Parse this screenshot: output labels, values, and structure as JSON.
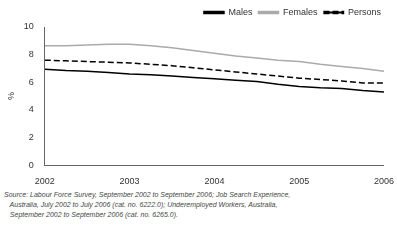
{
  "chart_data": {
    "type": "line",
    "ylabel": "%",
    "x": [
      2002.0,
      2002.25,
      2002.5,
      2002.75,
      2003.0,
      2003.25,
      2003.5,
      2003.75,
      2004.0,
      2004.25,
      2004.5,
      2004.75,
      2005.0,
      2005.25,
      2005.5,
      2005.75,
      2006.0
    ],
    "series": [
      {
        "name": "Males",
        "color": "#000000",
        "line_style": "solid",
        "values": [
          6.95,
          6.85,
          6.8,
          6.7,
          6.6,
          6.55,
          6.45,
          6.35,
          6.25,
          6.15,
          6.05,
          5.85,
          5.7,
          5.6,
          5.55,
          5.4,
          5.3
        ]
      },
      {
        "name": "Females",
        "color": "#aaaaaa",
        "line_style": "solid",
        "values": [
          8.65,
          8.65,
          8.7,
          8.75,
          8.75,
          8.65,
          8.5,
          8.3,
          8.1,
          7.9,
          7.75,
          7.6,
          7.5,
          7.3,
          7.15,
          7.0,
          6.8
        ]
      },
      {
        "name": "Persons",
        "color": "#000000",
        "line_style": "dashed",
        "values": [
          7.6,
          7.55,
          7.5,
          7.45,
          7.4,
          7.3,
          7.2,
          7.05,
          6.9,
          6.75,
          6.6,
          6.45,
          6.3,
          6.2,
          6.1,
          5.95,
          5.95
        ]
      }
    ],
    "xlim": [
      2002,
      2006
    ],
    "xticks": [
      2002,
      2003,
      2004,
      2005,
      2006
    ],
    "ylim": [
      0,
      10
    ],
    "yticks": [
      0,
      2,
      4,
      6,
      8,
      10
    ],
    "grid": false,
    "legend": "upper right",
    "annotations": [
      "Source: Labour Force Survey, September 2002 to September 2006; Job Search Experience,",
      "   Australia, July 2002 to July 2006 (cat. no. 6222.0); Underemployed Workers, Australia,",
      "   September 2002 to September 2006 (cat. no. 6265.0)."
    ]
  }
}
